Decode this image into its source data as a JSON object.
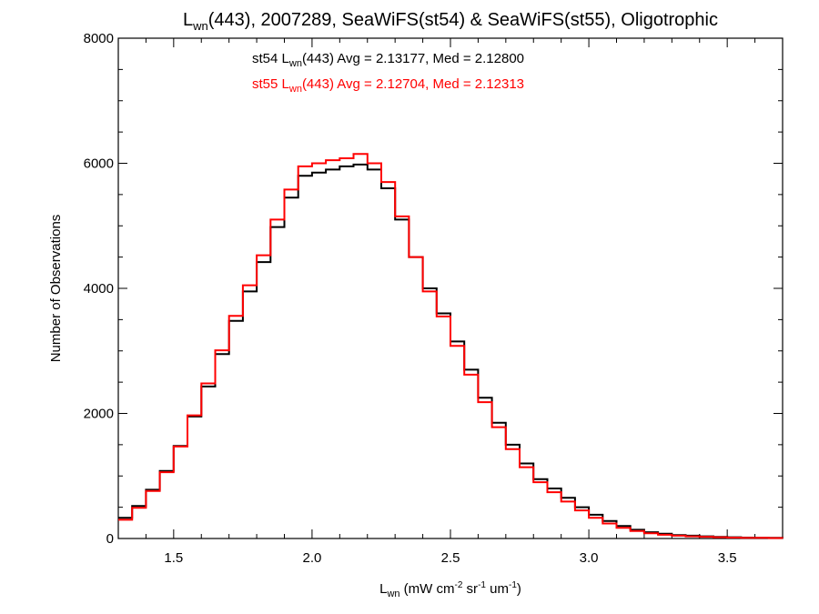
{
  "chart_data": {
    "type": "line",
    "subtype": "step-histogram",
    "title": {
      "main": "L",
      "sub": "wn",
      "rest": "(443), 2007289, SeaWiFS(st54) & SeaWiFS(st55), Oligotrophic"
    },
    "xlabel": {
      "main": "L",
      "sub": "wn",
      "rest": " (mW cm",
      "sup1": "-2",
      "mid": " sr",
      "sup2": "-1",
      "mid2": " um",
      "sup3": "-1",
      "end": ")"
    },
    "ylabel": "Number of Observations",
    "xlim": [
      1.3,
      3.7
    ],
    "ylim": [
      0,
      8000
    ],
    "x_ticks": [
      {
        "v": 1.5,
        "label": "1.5"
      },
      {
        "v": 2.0,
        "label": "2.0"
      },
      {
        "v": 2.5,
        "label": "2.5"
      },
      {
        "v": 3.0,
        "label": "3.0"
      },
      {
        "v": 3.5,
        "label": "3.5"
      }
    ],
    "y_ticks": [
      {
        "v": 0,
        "label": "0"
      },
      {
        "v": 2000,
        "label": "2000"
      },
      {
        "v": 4000,
        "label": "4000"
      },
      {
        "v": 6000,
        "label": "6000"
      },
      {
        "v": 8000,
        "label": "8000"
      }
    ],
    "annotations": [
      {
        "pre": "st54 L",
        "sub": "wn",
        "post": "(443) Avg = 2.13177, Med = 2.12800",
        "color": "#000000"
      },
      {
        "pre": "st55 L",
        "sub": "wn",
        "post": "(443) Avg = 2.12704, Med = 2.12313",
        "color": "#ff0000"
      }
    ],
    "grid": false,
    "series": [
      {
        "color": "#000000",
        "x": [
          1.3,
          1.35,
          1.4,
          1.45,
          1.5,
          1.55,
          1.6,
          1.65,
          1.7,
          1.75,
          1.8,
          1.85,
          1.9,
          1.95,
          2.0,
          2.05,
          2.1,
          2.15,
          2.2,
          2.25,
          2.3,
          2.35,
          2.4,
          2.45,
          2.5,
          2.55,
          2.6,
          2.65,
          2.7,
          2.75,
          2.8,
          2.85,
          2.9,
          2.95,
          3.0,
          3.05,
          3.1,
          3.15,
          3.2,
          3.25,
          3.3,
          3.35,
          3.4,
          3.45,
          3.5,
          3.55,
          3.6,
          3.65,
          3.7
        ],
        "values": [
          330,
          520,
          780,
          1080,
          1480,
          1950,
          2430,
          2950,
          3480,
          3950,
          4420,
          4980,
          5450,
          5800,
          5850,
          5900,
          5950,
          5980,
          5900,
          5600,
          5100,
          4500,
          4000,
          3600,
          3150,
          2700,
          2250,
          1850,
          1500,
          1200,
          950,
          800,
          650,
          500,
          380,
          280,
          200,
          140,
          100,
          75,
          55,
          45,
          35,
          25,
          20,
          15,
          12,
          10,
          8
        ]
      },
      {
        "color": "#ff0000",
        "x": [
          1.3,
          1.35,
          1.4,
          1.45,
          1.5,
          1.55,
          1.6,
          1.65,
          1.7,
          1.75,
          1.8,
          1.85,
          1.9,
          1.95,
          2.0,
          2.05,
          2.1,
          2.15,
          2.2,
          2.25,
          2.3,
          2.35,
          2.4,
          2.45,
          2.5,
          2.55,
          2.6,
          2.65,
          2.7,
          2.75,
          2.8,
          2.85,
          2.9,
          2.95,
          3.0,
          3.05,
          3.1,
          3.15,
          3.2,
          3.25,
          3.3,
          3.35,
          3.4,
          3.45,
          3.5,
          3.55,
          3.6,
          3.65,
          3.7
        ],
        "values": [
          300,
          490,
          760,
          1060,
          1470,
          1970,
          2480,
          3010,
          3560,
          4050,
          4530,
          5100,
          5580,
          5950,
          6000,
          6050,
          6080,
          6150,
          6000,
          5700,
          5150,
          4500,
          3950,
          3550,
          3080,
          2620,
          2180,
          1780,
          1430,
          1140,
          900,
          740,
          590,
          450,
          330,
          240,
          170,
          120,
          85,
          60,
          45,
          35,
          28,
          20,
          15,
          12,
          10,
          8,
          6
        ]
      }
    ]
  }
}
